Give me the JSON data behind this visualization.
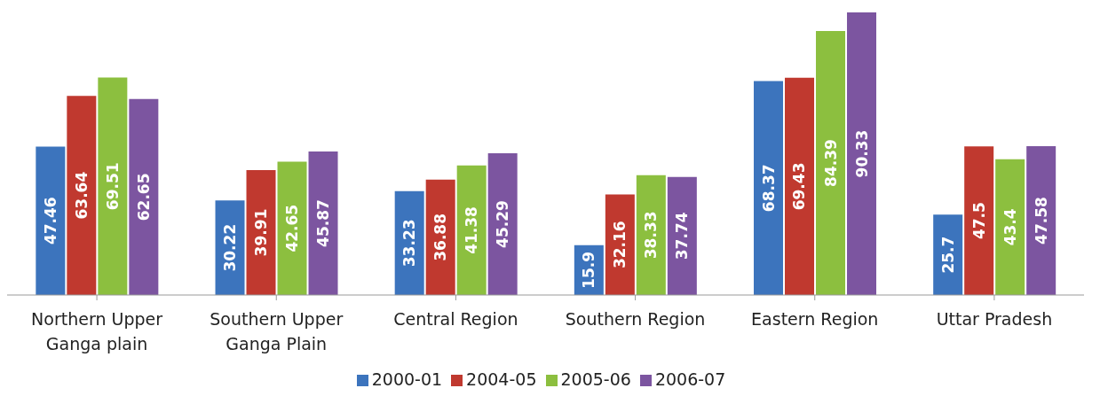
{
  "chart_data": {
    "type": "bar",
    "categories": [
      "Northern Upper Ganga plain",
      "Southern Upper Ganga Plain",
      "Central Region",
      "Southern Region",
      "Eastern Region",
      "Uttar Pradesh"
    ],
    "series": [
      {
        "name": "2000-01",
        "color": "#3c74bd",
        "values": [
          47.46,
          30.22,
          33.23,
          15.9,
          68.37,
          25.7
        ]
      },
      {
        "name": "2004-05",
        "color": "#c0392f",
        "values": [
          63.64,
          39.91,
          36.88,
          32.16,
          69.43,
          47.5
        ]
      },
      {
        "name": "2005-06",
        "color": "#8cbf3f",
        "values": [
          69.51,
          42.65,
          41.38,
          38.33,
          84.39,
          43.4
        ]
      },
      {
        "name": "2006-07",
        "color": "#7c55a0",
        "values": [
          62.65,
          45.87,
          45.29,
          37.74,
          90.33,
          47.58
        ]
      }
    ],
    "data_labels": true,
    "legend": "bottom",
    "grid": false
  }
}
